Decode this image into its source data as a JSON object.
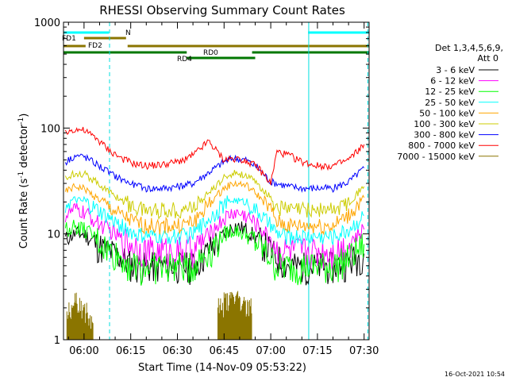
{
  "chart_data": {
    "type": "line",
    "title": "RHESSI Observing Summary Count Rates",
    "xlabel": "Start Time (14-Nov-09 05:53:22)",
    "ylabel_main": "Count Rate (s",
    "ylabel_sup": "-1",
    "ylabel_mid": " detector",
    "ylabel_end": ")",
    "yscale": "log",
    "ylim": [
      1,
      1000
    ],
    "xlim_minutes": [
      -6.6,
      91.6
    ],
    "x_ticks": [
      {
        "label": "06:00",
        "min": 0
      },
      {
        "label": "06:15",
        "min": 15
      },
      {
        "label": "06:30",
        "min": 30
      },
      {
        "label": "06:45",
        "min": 45
      },
      {
        "label": "07:00",
        "min": 60
      },
      {
        "label": "07:15",
        "min": 75
      },
      {
        "label": "07:30",
        "min": 90
      }
    ],
    "y_ticks": [
      {
        "label": "1",
        "value": 1
      },
      {
        "label": "10",
        "value": 10
      },
      {
        "label": "100",
        "value": 100
      },
      {
        "label": "1000",
        "value": 1000
      }
    ],
    "legend_header": [
      "Det 1,3,4,5,6,9,",
      "Att 0"
    ],
    "legend_placement": "right",
    "timestamp": "16-Oct-2021 10:54",
    "series": [
      {
        "name": "3 - 6 keV",
        "color": "#000000",
        "x": [
          -6,
          -3,
          0,
          4,
          8,
          12,
          16,
          20,
          25,
          30,
          35,
          40,
          45,
          48,
          52,
          56,
          60,
          62,
          66,
          70,
          75,
          80,
          85,
          90
        ],
        "y": [
          9,
          10,
          10,
          8,
          7,
          6,
          5,
          5,
          5,
          5,
          5,
          7,
          10,
          12,
          11,
          9,
          7,
          6,
          5,
          5,
          5,
          5,
          5.5,
          6.5
        ]
      },
      {
        "name": "6 - 12 keV",
        "color": "#ff00ff",
        "x": [
          -6,
          -3,
          0,
          4,
          8,
          12,
          16,
          20,
          25,
          30,
          35,
          40,
          45,
          48,
          52,
          56,
          60,
          62,
          66,
          70,
          75,
          80,
          85,
          90
        ],
        "y": [
          15,
          17,
          16,
          13,
          11,
          9,
          8,
          7,
          7,
          7,
          7,
          10,
          14,
          16,
          15,
          12,
          9,
          7,
          7,
          7,
          7,
          7,
          8,
          11
        ]
      },
      {
        "name": "12 - 25 keV",
        "color": "#00ff00",
        "x": [
          -6,
          -3,
          0,
          4,
          8,
          12,
          16,
          20,
          25,
          30,
          35,
          40,
          45,
          48,
          52,
          56,
          60,
          62,
          66,
          70,
          75,
          80,
          85,
          90
        ],
        "y": [
          11,
          12,
          11,
          9,
          7,
          6,
          5,
          5,
          5,
          5,
          5,
          7,
          10,
          11,
          10,
          8,
          6,
          5,
          5,
          5,
          5,
          5,
          6,
          8
        ]
      },
      {
        "name": "25 - 50 keV",
        "color": "#00ffff",
        "x": [
          -6,
          -3,
          0,
          4,
          8,
          12,
          16,
          20,
          25,
          30,
          35,
          40,
          45,
          48,
          52,
          56,
          60,
          62,
          66,
          70,
          75,
          80,
          85,
          90
        ],
        "y": [
          19,
          21,
          20,
          17,
          14,
          12,
          10,
          9.5,
          9.5,
          9.5,
          10,
          14,
          19,
          21,
          20,
          16,
          12,
          10,
          9.5,
          9.5,
          9.5,
          9.5,
          11,
          15
        ]
      },
      {
        "name": "50 - 100 keV",
        "color": "#ffa500",
        "x": [
          -6,
          -3,
          0,
          4,
          8,
          12,
          16,
          20,
          25,
          30,
          35,
          40,
          45,
          48,
          52,
          56,
          60,
          62,
          66,
          70,
          75,
          80,
          85,
          90
        ],
        "y": [
          25,
          28,
          27,
          22,
          18,
          15,
          13,
          12,
          12,
          12,
          13,
          19,
          27,
          30,
          29,
          23,
          17,
          13,
          12,
          12,
          12,
          12,
          15,
          22
        ]
      },
      {
        "name": "100 - 300 keV",
        "color": "#cccc00",
        "x": [
          -6,
          -3,
          0,
          4,
          8,
          12,
          16,
          20,
          25,
          30,
          35,
          40,
          45,
          48,
          52,
          56,
          60,
          62,
          66,
          70,
          75,
          80,
          85,
          90
        ],
        "y": [
          33,
          38,
          37,
          31,
          25,
          21,
          18,
          17,
          17,
          17,
          18,
          24,
          34,
          38,
          36,
          29,
          22,
          18,
          17,
          17,
          17,
          17,
          20,
          28
        ]
      },
      {
        "name": "300 - 800 keV",
        "color": "#0000ff",
        "x": [
          -6,
          -3,
          0,
          4,
          8,
          12,
          16,
          20,
          25,
          30,
          35,
          40,
          45,
          48,
          52,
          56,
          60,
          62,
          66,
          70,
          75,
          80,
          85,
          90
        ],
        "y": [
          48,
          55,
          54,
          46,
          38,
          33,
          29,
          27,
          27,
          28,
          30,
          38,
          48,
          52,
          50,
          42,
          31,
          30,
          28,
          27,
          27,
          27,
          31,
          42
        ]
      },
      {
        "name": "800 - 7000 keV",
        "color": "#ff0000",
        "x": [
          -6,
          -3,
          0,
          4,
          8,
          12,
          16,
          20,
          25,
          30,
          35,
          40,
          45,
          48,
          52,
          56,
          60,
          62,
          66,
          70,
          75,
          80,
          85,
          90
        ],
        "y": [
          90,
          98,
          95,
          80,
          62,
          52,
          46,
          44,
          45,
          48,
          55,
          75,
          50,
          52,
          50,
          42,
          30,
          60,
          55,
          48,
          44,
          44,
          50,
          70
        ]
      },
      {
        "name": "7000 - 15000 keV",
        "color": "#8b7500",
        "x": [
          -5.5,
          -4,
          -2,
          0,
          43,
          45,
          47,
          49,
          51
        ],
        "y": [
          1.9,
          2.2,
          1.8,
          1.5,
          1.9,
          2.2,
          2.3,
          2.1,
          1.9
        ]
      }
    ],
    "flag_bars": [
      {
        "label": "N",
        "color": "#00ffff",
        "segments": [
          [
            -6.6,
            8
          ],
          [
            72,
            91.6
          ]
        ]
      },
      {
        "label": "FD1",
        "color": "#8b7500",
        "segments": [
          [
            0,
            13.5
          ]
        ]
      },
      {
        "label": "FD2",
        "color": "#8b7500",
        "segments": [
          [
            -6.6,
            0.5
          ],
          [
            14,
            91.6
          ]
        ]
      },
      {
        "label": "RD0",
        "color": "#007700",
        "segments": [
          [
            -6.6,
            33
          ],
          [
            54,
            91.6
          ]
        ]
      },
      {
        "label": "RD4",
        "color": "#007700",
        "segments": [
          [
            33,
            55
          ]
        ]
      }
    ],
    "vertical_markers": [
      {
        "min": -6.6,
        "style": "solid"
      },
      {
        "min": 8.2,
        "style": "dashed"
      },
      {
        "min": 72.2,
        "style": "solid"
      },
      {
        "min": 91.2,
        "style": "dashed"
      }
    ]
  }
}
